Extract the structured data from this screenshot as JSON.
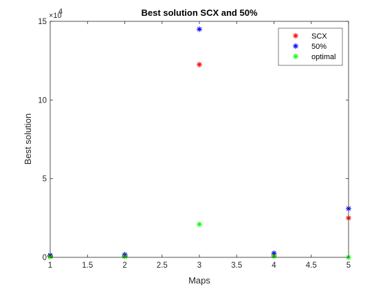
{
  "chart_data": {
    "type": "scatter",
    "title": "Best solution SCX and 50%",
    "xlabel": "Maps",
    "ylabel": "Best solution",
    "xlim": [
      1,
      5
    ],
    "ylim": [
      0,
      150000
    ],
    "x_ticks": [
      "1",
      "1.5",
      "2",
      "2.5",
      "3",
      "3.5",
      "4",
      "4.5",
      "5"
    ],
    "y_ticks": [
      "0",
      "5",
      "10",
      "15"
    ],
    "y_multiplier_base": "×10",
    "y_multiplier_exp": "4",
    "grid": false,
    "legend_position": "top-right",
    "marker": "asterisk",
    "series": [
      {
        "name": "SCX",
        "color": "#ff0000",
        "x": [
          1,
          2,
          3,
          4,
          5
        ],
        "y": [
          700,
          900,
          122500,
          1500,
          25000
        ]
      },
      {
        "name": "50%",
        "color": "#0000ff",
        "x": [
          1,
          2,
          3,
          4,
          5
        ],
        "y": [
          1300,
          1700,
          145000,
          2600,
          31000
        ]
      },
      {
        "name": "optimal",
        "color": "#00ff00",
        "x": [
          1,
          2,
          3,
          4,
          5
        ],
        "y": [
          300,
          400,
          21000,
          700,
          0
        ]
      }
    ]
  }
}
